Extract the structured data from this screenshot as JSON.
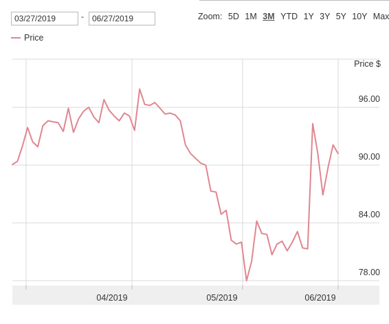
{
  "range": {
    "from": "03/27/2019",
    "separator": "-",
    "to": "06/27/2019"
  },
  "zoom": {
    "label": "Zoom:",
    "options": [
      "5D",
      "1M",
      "3M",
      "YTD",
      "1Y",
      "3Y",
      "5Y",
      "10Y",
      "Max"
    ],
    "active": "3M"
  },
  "colors": {
    "series": "#e0868f",
    "grid": "#d8d8d8",
    "axis_band": "#efefef"
  },
  "chart_data": {
    "type": "line",
    "ylabel": "Price $",
    "ylim": [
      77.5,
      101
    ],
    "yticks": [
      {
        "value": 78,
        "label": "78.00"
      },
      {
        "value": 84,
        "label": "84.00"
      },
      {
        "value": 90,
        "label": "90.00"
      },
      {
        "value": 96,
        "label": "96.00"
      }
    ],
    "xticks": [
      "04/2019",
      "05/2019",
      "06/2019"
    ],
    "series": [
      {
        "name": "Price",
        "values": [
          90.05,
          90.4,
          92.0,
          93.9,
          92.4,
          91.9,
          94.1,
          94.6,
          94.5,
          94.4,
          93.5,
          95.9,
          93.4,
          94.8,
          95.6,
          96.0,
          95.0,
          94.4,
          96.8,
          95.7,
          95.1,
          94.6,
          95.4,
          95.1,
          93.6,
          97.9,
          96.3,
          96.2,
          96.5,
          95.9,
          95.3,
          95.4,
          95.2,
          94.6,
          92.1,
          91.2,
          90.7,
          90.2,
          90.0,
          87.3,
          87.2,
          84.9,
          85.3,
          82.2,
          81.8,
          82.0,
          78.0,
          80.0,
          84.2,
          82.9,
          82.8,
          80.7,
          81.8,
          82.1,
          81.1,
          82.0,
          83.1,
          81.4,
          81.3,
          94.3,
          91.2,
          86.9,
          89.7,
          92.1,
          91.2
        ]
      }
    ]
  }
}
